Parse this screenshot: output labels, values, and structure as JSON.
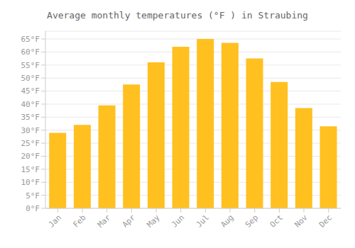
{
  "chart_data": {
    "type": "bar",
    "title": "Average monthly temperatures (°F ) in Straubing",
    "categories": [
      "Jan",
      "Feb",
      "Mar",
      "Apr",
      "May",
      "Jun",
      "Jul",
      "Aug",
      "Sep",
      "Oct",
      "Nov",
      "Dec"
    ],
    "values": [
      29,
      32,
      39.5,
      47.5,
      56,
      62,
      65,
      63.5,
      57.5,
      48.5,
      38.5,
      31.5
    ],
    "color": "#FFC020",
    "ylim": [
      0,
      68
    ],
    "yticks": [
      {
        "value": 0,
        "label": "0°F"
      },
      {
        "value": 5,
        "label": "5°F"
      },
      {
        "value": 10,
        "label": "10°F"
      },
      {
        "value": 15,
        "label": "15°F"
      },
      {
        "value": 20,
        "label": "20°F"
      },
      {
        "value": 25,
        "label": "25°F"
      },
      {
        "value": 30,
        "label": "30°F"
      },
      {
        "value": 35,
        "label": "35°F"
      },
      {
        "value": 40,
        "label": "40°F"
      },
      {
        "value": 45,
        "label": "45°F"
      },
      {
        "value": 50,
        "label": "50°F"
      },
      {
        "value": 55,
        "label": "55°F"
      },
      {
        "value": 60,
        "label": "60°F"
      },
      {
        "value": 65,
        "label": "65°F"
      }
    ],
    "grid": true
  }
}
